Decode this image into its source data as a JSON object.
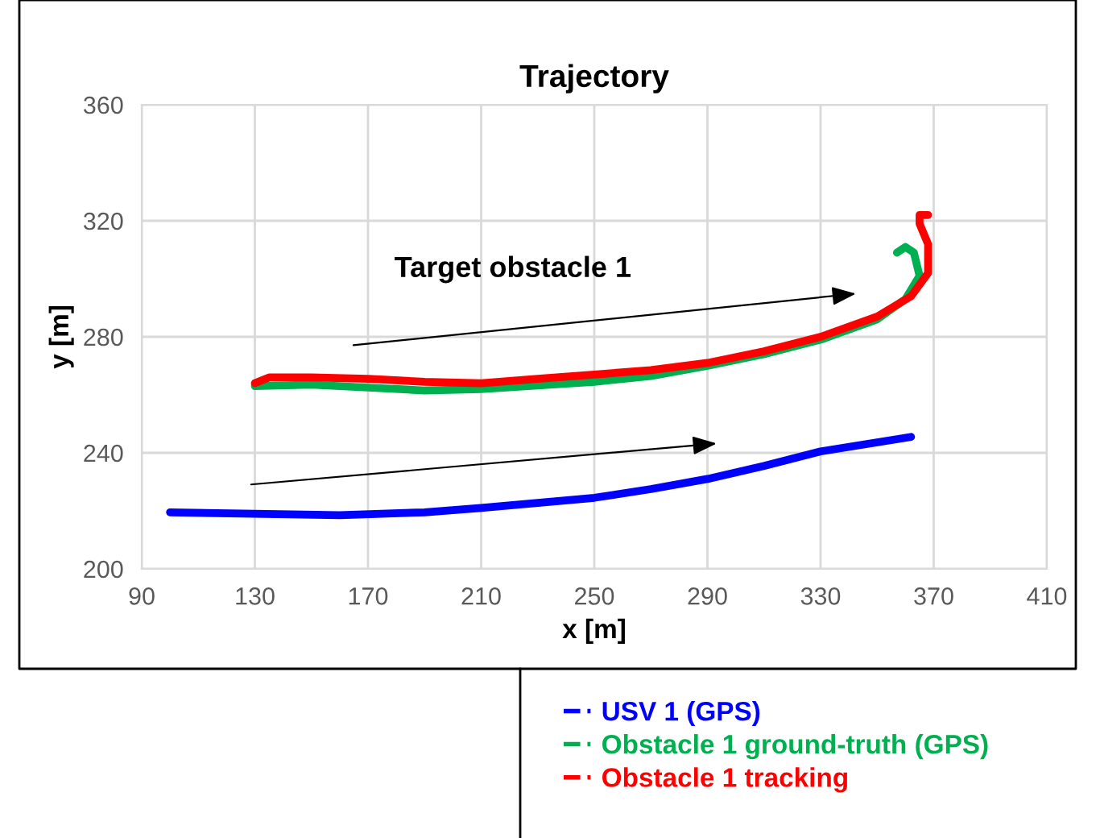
{
  "chart_data": {
    "type": "line",
    "title": "Trajectory",
    "xlabel": "x [m]",
    "ylabel": "y [m]",
    "xlim": [
      90,
      410
    ],
    "xticks": [
      90,
      130,
      170,
      210,
      250,
      290,
      330,
      370,
      410
    ],
    "ylim": [
      200,
      360
    ],
    "yticks": [
      200,
      240,
      280,
      320,
      360
    ],
    "grid": true,
    "legend": "bottom",
    "marker": "none",
    "line_style": "solid",
    "annotations": [
      "Target obstacle 1"
    ],
    "series": [
      {
        "name": "USV 1 (GPS)",
        "color": "#0000ff",
        "x": [
          100,
          130,
          160,
          190,
          210,
          250,
          270,
          290,
          310,
          330,
          362
        ],
        "values": [
          219.5,
          219,
          218.5,
          219.5,
          221,
          224.5,
          227.5,
          231,
          235.5,
          240.5,
          245.5
        ]
      },
      {
        "name": "Obstacle 1 ground-truth (GPS)",
        "color": "#00b050",
        "x": [
          130,
          150,
          170,
          190,
          210,
          250,
          270,
          290,
          310,
          330,
          350,
          360,
          365,
          363,
          360,
          357
        ],
        "values": [
          263,
          263.5,
          262.5,
          261.5,
          262,
          264.5,
          266.5,
          270,
          274,
          279,
          286,
          293,
          301,
          309,
          311,
          309
        ]
      },
      {
        "name": "Obstacle 1 tracking",
        "color": "#ff0000",
        "x": [
          130,
          135,
          150,
          170,
          190,
          210,
          230,
          250,
          270,
          290,
          310,
          330,
          350,
          362,
          368,
          368,
          365,
          365,
          368
        ],
        "values": [
          264,
          266,
          266,
          265.5,
          264.5,
          264,
          265.5,
          267,
          268.5,
          271,
          275,
          280,
          287,
          294,
          302,
          312,
          319,
          322,
          322
        ]
      }
    ]
  }
}
